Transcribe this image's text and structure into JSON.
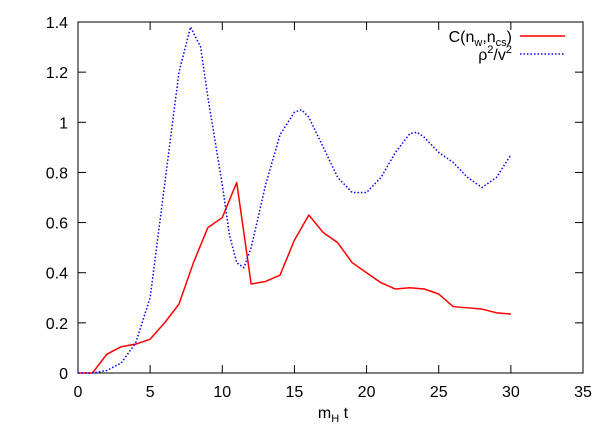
{
  "chart_data": {
    "type": "line",
    "xlabel": "m_H t",
    "ylabel": "",
    "xlim": [
      0,
      35
    ],
    "ylim": [
      0,
      1.4
    ],
    "x_ticks": [
      "0",
      "5",
      "10",
      "15",
      "20",
      "25",
      "30",
      "35"
    ],
    "y_ticks": [
      "0",
      "0.2",
      "0.4",
      "0.6",
      "0.8",
      "1",
      "1.2",
      "1.4"
    ],
    "grid": false,
    "legend_position": "top-right",
    "series": [
      {
        "name": "C(n_w,n_cs)",
        "color": "#ff0000",
        "style": "solid",
        "points": [
          [
            0,
            0
          ],
          [
            1,
            0
          ],
          [
            2,
            0.075
          ],
          [
            3,
            0.105
          ],
          [
            4,
            0.115
          ],
          [
            5,
            0.135
          ],
          [
            6,
            0.2
          ],
          [
            7,
            0.275
          ],
          [
            8,
            0.44
          ],
          [
            9,
            0.58
          ],
          [
            10,
            0.62
          ],
          [
            11,
            0.76
          ],
          [
            12,
            0.355
          ],
          [
            13,
            0.365
          ],
          [
            14,
            0.39
          ],
          [
            15,
            0.53
          ],
          [
            16,
            0.63
          ],
          [
            17,
            0.56
          ],
          [
            18,
            0.52
          ],
          [
            19,
            0.44
          ],
          [
            20,
            0.4
          ],
          [
            21,
            0.36
          ],
          [
            22,
            0.335
          ],
          [
            23,
            0.34
          ],
          [
            24,
            0.335
          ],
          [
            25,
            0.315
          ],
          [
            26,
            0.265
          ],
          [
            27,
            0.26
          ],
          [
            28,
            0.255
          ],
          [
            29,
            0.24
          ],
          [
            30,
            0.235
          ]
        ]
      },
      {
        "name": "ρ²/v²",
        "color": "#0000ff",
        "style": "dotted",
        "points": [
          [
            0,
            0
          ],
          [
            1,
            0
          ],
          [
            2,
            0.01
          ],
          [
            3,
            0.04
          ],
          [
            4,
            0.12
          ],
          [
            5,
            0.3
          ],
          [
            6,
            0.75
          ],
          [
            7,
            1.2
          ],
          [
            7.8,
            1.38
          ],
          [
            8.5,
            1.3
          ],
          [
            9,
            1.1
          ],
          [
            10,
            0.75
          ],
          [
            10.5,
            0.55
          ],
          [
            11,
            0.44
          ],
          [
            11.5,
            0.42
          ],
          [
            12,
            0.5
          ],
          [
            13,
            0.75
          ],
          [
            14,
            0.95
          ],
          [
            15,
            1.04
          ],
          [
            15.5,
            1.05
          ],
          [
            16,
            1.02
          ],
          [
            17,
            0.9
          ],
          [
            18,
            0.78
          ],
          [
            19,
            0.72
          ],
          [
            20,
            0.72
          ],
          [
            21,
            0.78
          ],
          [
            22,
            0.88
          ],
          [
            23,
            0.955
          ],
          [
            23.5,
            0.96
          ],
          [
            24,
            0.94
          ],
          [
            25,
            0.88
          ],
          [
            26,
            0.84
          ],
          [
            27,
            0.78
          ],
          [
            28,
            0.74
          ],
          [
            29,
            0.78
          ],
          [
            30,
            0.87
          ]
        ]
      }
    ]
  },
  "legend": {
    "series_1": {
      "base": "C(n",
      "sub1": "w",
      "mid": ",n",
      "sub2": "cs",
      "end": ")"
    },
    "series_2": {
      "base1": "ρ",
      "sup1": "2",
      "mid": "/v",
      "sup2": "2"
    }
  },
  "xaxis_label": {
    "base": "m",
    "sub": "H",
    "end": " t"
  }
}
